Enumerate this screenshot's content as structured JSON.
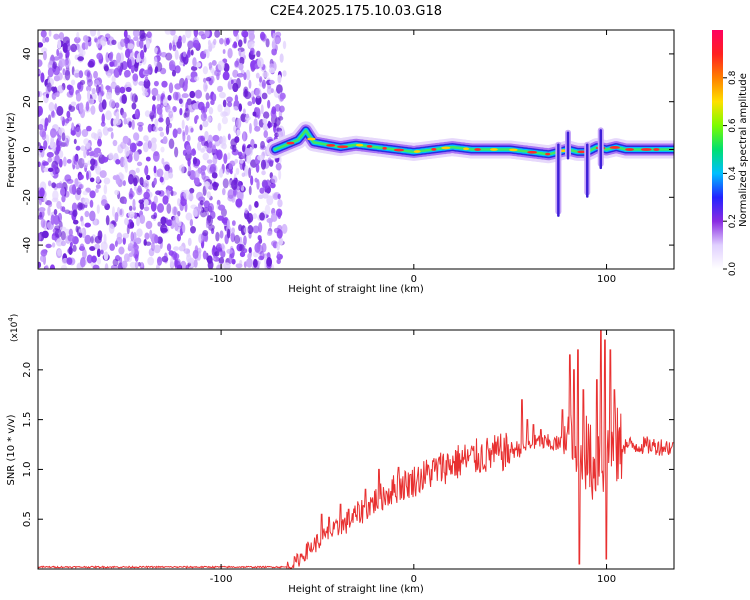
{
  "figure": {
    "title": "C2E4.2025.175.10.03.G18"
  },
  "chart_data": [
    {
      "type": "heatmap",
      "xlabel": "Height of straight line (km)",
      "ylabel": "Frequency (Hz)",
      "xlim": [
        -195,
        135
      ],
      "ylim": [
        -50,
        50
      ],
      "xticks": [
        -100,
        0,
        100
      ],
      "xtick_labels": [
        "-100",
        "0",
        "100"
      ],
      "yticks": [
        -40,
        -20,
        0,
        20,
        40
      ],
      "ytick_labels": [
        "-40",
        "-20",
        "0",
        "20",
        "40"
      ],
      "noise_region_x": [
        -195,
        -70
      ],
      "signal_track": {
        "x": [
          -72,
          -66,
          -60,
          -56,
          -52,
          -45,
          -38,
          -30,
          -20,
          -10,
          0,
          10,
          20,
          30,
          40,
          50,
          60,
          70,
          75,
          80,
          85,
          90,
          95,
          100,
          105,
          110,
          120,
          135
        ],
        "y": [
          0,
          2,
          4,
          8,
          3,
          2,
          1,
          2,
          1,
          0,
          -1,
          0,
          1,
          0,
          0,
          0,
          -1,
          -2,
          -1,
          0,
          -1,
          -1,
          1,
          0,
          1,
          0,
          0,
          0
        ]
      },
      "fringes": [
        {
          "x": 75,
          "y": [
            -26,
            2
          ]
        },
        {
          "x": 90,
          "y": [
            -18,
            2
          ]
        },
        {
          "x": 97,
          "y": [
            -6,
            8
          ]
        },
        {
          "x": 80,
          "y": [
            -2,
            7
          ]
        }
      ],
      "grid": false,
      "colorbar": {
        "label": "Normalized spectral amplitude",
        "range": [
          0,
          1
        ],
        "ticks": [
          0.0,
          0.2,
          0.4,
          0.6,
          0.8
        ],
        "tick_labels": [
          "0.0",
          "0.2",
          "0.4",
          "0.6",
          "0.8"
        ],
        "colors": [
          "#ffffff",
          "#e0d0ff",
          "#8a2be2",
          "#2222ff",
          "#00bfff",
          "#00e070",
          "#7cfc00",
          "#ffe000",
          "#ff8000",
          "#ff2020",
          "#ff0060"
        ]
      }
    },
    {
      "type": "line",
      "xlabel": "Height of straight line (km)",
      "ylabel": "SNR (10 * v/v)",
      "y_multiplier": "(x10",
      "y_multiplier_exp": "4",
      "y_multiplier_close": ")",
      "xlim": [
        -195,
        135
      ],
      "ylim": [
        0,
        2.4
      ],
      "xticks": [
        -100,
        0,
        100
      ],
      "xtick_labels": [
        "-100",
        "0",
        "100"
      ],
      "yticks": [
        0.5,
        1.0,
        1.5,
        2.0
      ],
      "ytick_labels": [
        "0.5",
        "1.0",
        "1.5",
        "2.0"
      ],
      "grid": false,
      "series": [
        {
          "color": "#e83030",
          "envelope": {
            "x": [
              -195,
              -66,
              -62,
              -55,
              -50,
              -45,
              -40,
              -30,
              -20,
              -10,
              0,
              10,
              20,
              30,
              40,
              50,
              55,
              60,
              65,
              70,
              75,
              80,
              82,
              84,
              86,
              88,
              90,
              92,
              94,
              96,
              98,
              100,
              102,
              104,
              106,
              110,
              120,
              135
            ],
            "y": [
              0.02,
              0.02,
              0.06,
              0.2,
              0.28,
              0.35,
              0.4,
              0.55,
              0.7,
              0.82,
              0.9,
              1.0,
              1.08,
              1.13,
              1.17,
              1.2,
              1.22,
              1.25,
              1.28,
              1.27,
              1.26,
              1.25,
              1.2,
              1.1,
              0.9,
              1.3,
              1.2,
              1.1,
              1.0,
              1.2,
              1.1,
              1.3,
              1.2,
              1.28,
              1.25,
              1.25,
              1.25,
              1.23
            ]
          },
          "spikes": [
            {
              "x": -48,
              "y": 0.55
            },
            {
              "x": -44,
              "y": 0.52
            },
            {
              "x": -38,
              "y": 0.65
            },
            {
              "x": -34,
              "y": 0.6
            },
            {
              "x": -25,
              "y": 0.8
            },
            {
              "x": -18,
              "y": 1.0
            },
            {
              "x": -8,
              "y": 1.02
            },
            {
              "x": 56,
              "y": 1.7
            },
            {
              "x": 59,
              "y": 1.5
            },
            {
              "x": 62,
              "y": 1.45
            },
            {
              "x": 66,
              "y": 1.4
            },
            {
              "x": 77,
              "y": 1.6
            },
            {
              "x": 81,
              "y": 2.15
            },
            {
              "x": 83,
              "y": 2.0
            },
            {
              "x": 85,
              "y": 2.2
            },
            {
              "x": 86,
              "y": 0.05
            },
            {
              "x": 88,
              "y": 1.8
            },
            {
              "x": 95,
              "y": 1.9
            },
            {
              "x": 97,
              "y": 2.4
            },
            {
              "x": 99,
              "y": 2.3
            },
            {
              "x": 100,
              "y": 0.1
            },
            {
              "x": 102,
              "y": 2.2
            },
            {
              "x": 104,
              "y": 1.8
            }
          ]
        }
      ]
    }
  ]
}
